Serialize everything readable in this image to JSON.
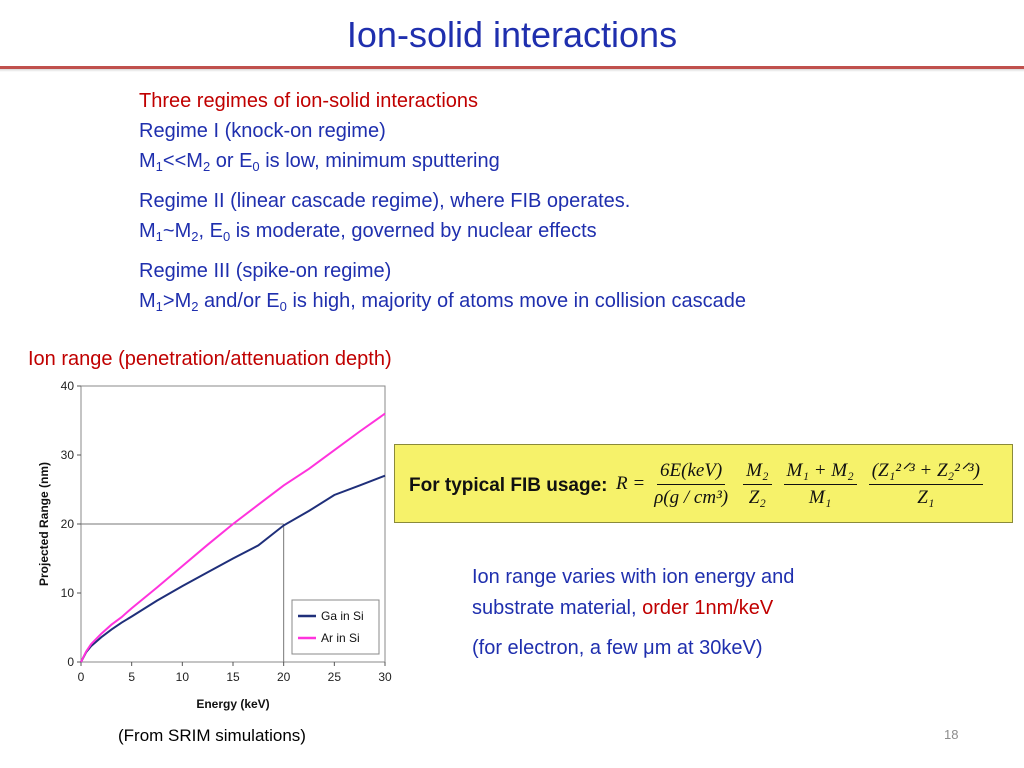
{
  "slide": {
    "title": "Ion-solid interactions",
    "page_number": "18"
  },
  "bullets": {
    "intro": "Three regimes of ion-solid interactions",
    "regime1_title": "Regime I (knock-on regime)",
    "regime1_detail": {
      "a": "M",
      "b": "1",
      "c": "<<M",
      "d": "2",
      "e": " or E",
      "f": "0",
      "g": " is low, minimum sputtering"
    },
    "regime2_title": "Regime II (linear cascade regime), where FIB operates.",
    "regime2_detail": {
      "a": "M",
      "b": "1",
      "c": "~M",
      "d": "2",
      "e": ", E",
      "f": "0",
      "g": " is moderate, governed by nuclear effects"
    },
    "regime3_title": "Regime III (spike-on regime)",
    "regime3_detail": {
      "a": "M",
      "b": "1",
      "c": ">M",
      "d": "2",
      "e": " and/or E",
      "f": "0",
      "g": " is high, majority of atoms move in collision cascade"
    }
  },
  "section_heading": "Ion range (penetration/attenuation depth)",
  "caption": "(From SRIM simulations)",
  "formula_box": {
    "label": "For typical FIB usage:",
    "lhs": "R =",
    "f1_num": "6E(keV)",
    "f1_den": "ρ(g / cm³)",
    "f2_num": "M₂",
    "f2_den": "Z₂",
    "f3_num": "M₁ + M₂",
    "f3_den": "M₁",
    "f4_num": "(Z₁²ᐟ³ + Z₂²ᐟ³)",
    "f4_den": "Z₁",
    "background": "#f6f26a"
  },
  "notes": {
    "line1": "Ion range varies with ion energy and",
    "line2_a": "substrate material, ",
    "line2_b": "order",
    "line2_c": " 1nm/keV",
    "line3": "(for electron, a few μm at 30keV)"
  },
  "colors": {
    "title": "#1f2fae",
    "text": "#1f2fae",
    "highlight": "#c00000",
    "rule": "#c0504d"
  },
  "chart_data": {
    "type": "line",
    "xlabel": "Energy (keV)",
    "ylabel": "Projected Range (nm)",
    "xlim": [
      0,
      30
    ],
    "ylim": [
      0,
      40
    ],
    "xticks": [
      0,
      5,
      10,
      15,
      20,
      25,
      30
    ],
    "yticks": [
      0,
      10,
      20,
      30,
      40
    ],
    "grid": false,
    "legend_position": "bottom-right",
    "reference_lines": {
      "x": 20,
      "y": 20
    },
    "series": [
      {
        "name": "Ga in Si",
        "color": "#1f2f7a",
        "x": [
          0,
          0.5,
          1,
          2,
          3,
          4,
          5,
          7.5,
          10,
          12.5,
          15,
          17.5,
          20,
          22.5,
          25,
          27.5,
          30
        ],
        "y": [
          0,
          1.4,
          2.3,
          3.6,
          4.7,
          5.7,
          6.6,
          8.9,
          11.0,
          13.0,
          15.0,
          16.9,
          19.8,
          21.9,
          24.2,
          25.6,
          27.0
        ]
      },
      {
        "name": "Ar in Si",
        "color": "#ff33dd",
        "x": [
          0,
          0.5,
          1,
          2,
          3,
          4,
          5,
          7.5,
          10,
          12.5,
          15,
          17.5,
          20,
          22.5,
          25,
          27.5,
          30
        ],
        "y": [
          0,
          1.5,
          2.6,
          4.1,
          5.4,
          6.5,
          7.8,
          10.8,
          13.9,
          17.0,
          20.0,
          22.8,
          25.6,
          28.0,
          30.7,
          33.4,
          36.0
        ]
      }
    ]
  }
}
